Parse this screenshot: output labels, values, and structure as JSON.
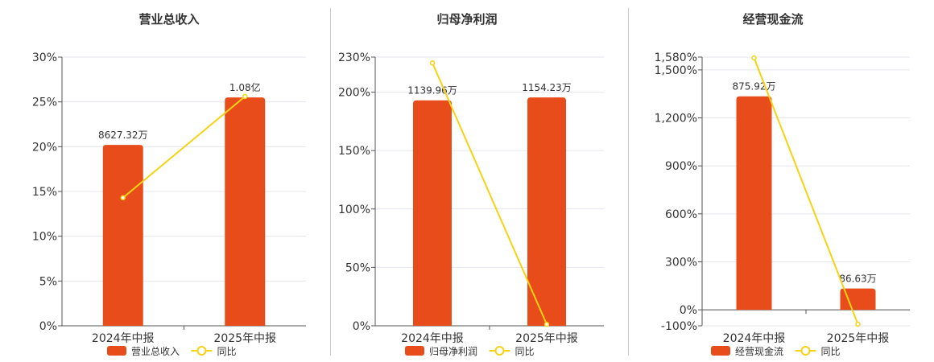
{
  "colors": {
    "bar": "#e84c1b",
    "line": "#f5d312",
    "grid": "#e3e6ee",
    "axis": "#555555",
    "text": "#333333"
  },
  "chart_data": [
    {
      "type": "bar",
      "title": "营业总收入",
      "categories": [
        "2024年中报",
        "2025年中报"
      ],
      "series": [
        {
          "name": "营业总收入",
          "type": "bar",
          "labels": [
            "8627.32万",
            "1.08亿"
          ]
        },
        {
          "name": "同比",
          "type": "line",
          "values": [
            14.3,
            25.6
          ]
        }
      ],
      "yticks": [
        "0%",
        "5%",
        "10%",
        "15%",
        "20%",
        "25%",
        "30%"
      ],
      "ylim": [
        0,
        30
      ],
      "bar_heights_pct": [
        20.2,
        25.5
      ],
      "legend": "bottom"
    },
    {
      "type": "bar",
      "title": "归母净利润",
      "categories": [
        "2024年中报",
        "2025年中报"
      ],
      "series": [
        {
          "name": "归母净利润",
          "type": "bar",
          "labels": [
            "1139.96万",
            "1154.23万"
          ]
        },
        {
          "name": "同比",
          "type": "line",
          "values": [
            225,
            1.3
          ]
        }
      ],
      "yticks": [
        "0%",
        "50%",
        "100%",
        "150%",
        "200%",
        "230%"
      ],
      "ylim": [
        0,
        230
      ],
      "bar_heights_pct": [
        193,
        195.5
      ],
      "legend": "bottom"
    },
    {
      "type": "bar",
      "title": "经营现金流",
      "categories": [
        "2024年中报",
        "2025年中报"
      ],
      "series": [
        {
          "name": "经营现金流",
          "type": "bar",
          "labels": [
            "875.92万",
            "86.63万"
          ]
        },
        {
          "name": "同比",
          "type": "line",
          "values": [
            1575,
            -90
          ]
        }
      ],
      "yticks": [
        "-100%",
        "0%",
        "300%",
        "600%",
        "900%",
        "1,200%",
        "1,500%",
        "1,580%"
      ],
      "ylim": [
        -100,
        1580
      ],
      "bar_heights_pct": [
        1335,
        133
      ],
      "legend": "bottom"
    }
  ]
}
